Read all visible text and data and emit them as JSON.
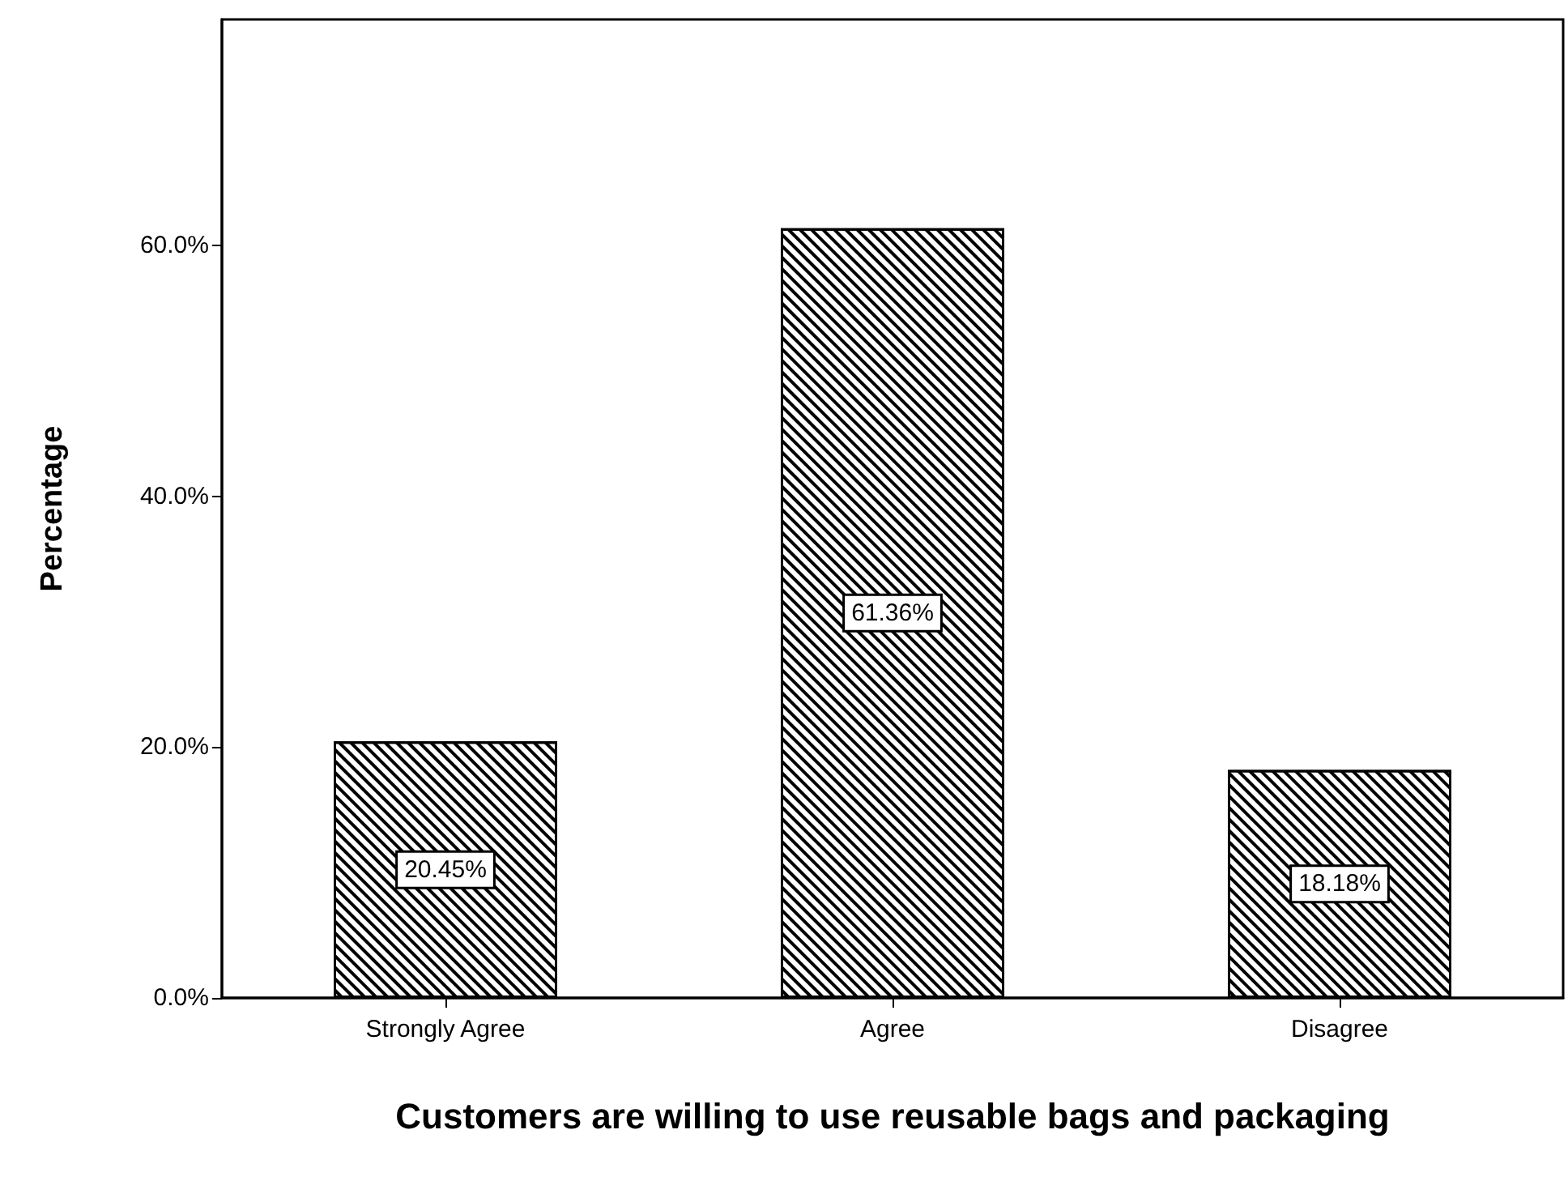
{
  "chart_data": {
    "type": "bar",
    "xlabel": "Customers are willing to use reusable bags and packaging",
    "ylabel": "Percentage",
    "categories": [
      "Strongly Agree",
      "Agree",
      "Disagree"
    ],
    "values": [
      20.45,
      61.36,
      18.18
    ],
    "value_labels": [
      "20.45%",
      "61.36%",
      "18.18%"
    ],
    "color": "#000000",
    "ylim": [
      0,
      78
    ],
    "yticks": [
      {
        "value": 0,
        "label": "0.0%"
      },
      {
        "value": 20,
        "label": "20.0%"
      },
      {
        "value": 40,
        "label": "40.0%"
      },
      {
        "value": 60,
        "label": "60.0%"
      }
    ],
    "grid": false
  }
}
